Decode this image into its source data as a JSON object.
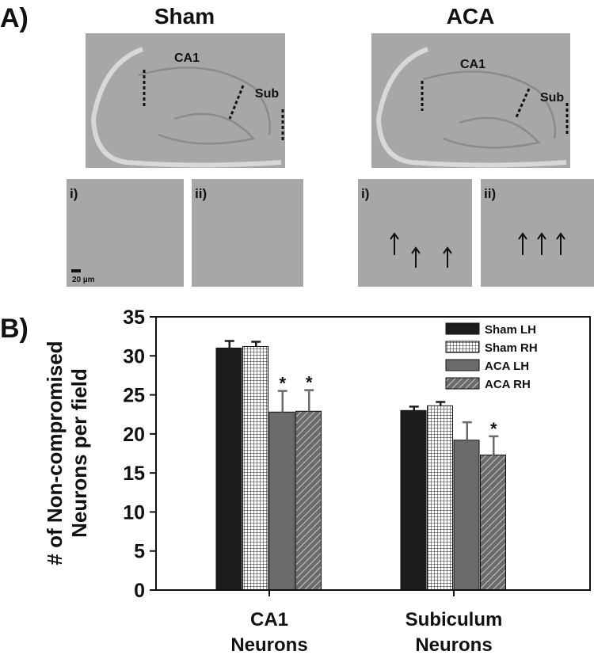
{
  "panel_a": {
    "label": "A)",
    "groups": [
      {
        "title": "Sham",
        "region_labels": [
          "CA1",
          "Sub"
        ],
        "insets": [
          "i)",
          "ii)"
        ],
        "scale_bar": "20 µm"
      },
      {
        "title": "ACA",
        "region_labels": [
          "CA1",
          "Sub"
        ],
        "insets": [
          "i)",
          "ii)"
        ]
      }
    ]
  },
  "chart_data": {
    "type": "bar",
    "panel_label": "B)",
    "y_label": [
      "# of Non-compromised",
      "Neurons per field"
    ],
    "categories": [
      [
        "CA1",
        "Neurons"
      ],
      [
        "Subiculum",
        "Neurons"
      ]
    ],
    "series": [
      {
        "name": "Sham LH",
        "color": "#1c1c1c",
        "pattern": "solid",
        "values": [
          31,
          23
        ],
        "errors": [
          0.9,
          0.5
        ],
        "significance": [
          null,
          null
        ]
      },
      {
        "name": "Sham RH",
        "color": "#1c1c1c",
        "pattern": "grid",
        "values": [
          31.2,
          23.6
        ],
        "errors": [
          0.6,
          0.5
        ],
        "significance": [
          null,
          null
        ]
      },
      {
        "name": "ACA LH",
        "color": "#6b6b6b",
        "pattern": "solid",
        "values": [
          22.8,
          19.2
        ],
        "errors": [
          2.7,
          2.3
        ],
        "significance": [
          "*",
          null
        ]
      },
      {
        "name": "ACA RH",
        "color": "#6b6b6b",
        "pattern": "hatch",
        "values": [
          22.9,
          17.3
        ],
        "errors": [
          2.7,
          2.4
        ],
        "significance": [
          "*",
          "*"
        ]
      }
    ],
    "ylim": [
      0,
      35
    ],
    "yticks": [
      0,
      5,
      10,
      15,
      20,
      25,
      30,
      35
    ],
    "legend": "upper right"
  }
}
